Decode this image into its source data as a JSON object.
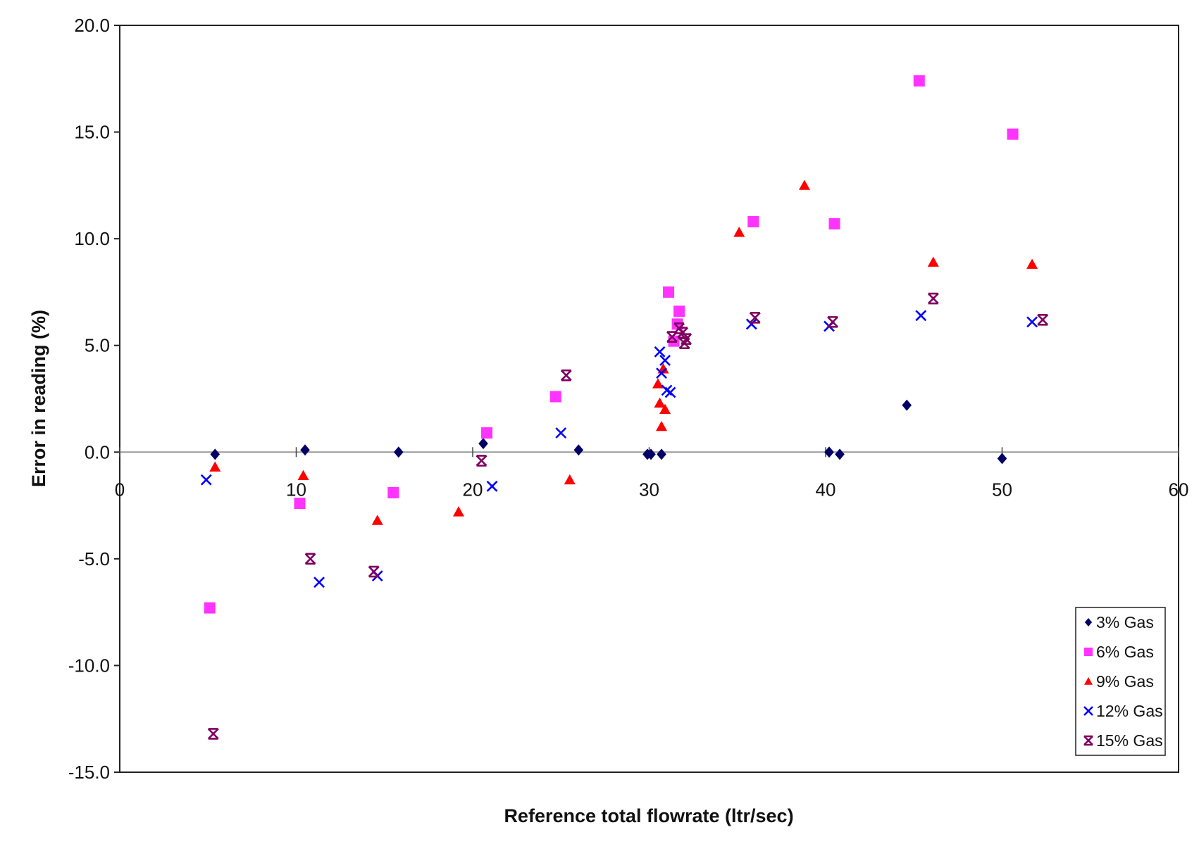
{
  "chart_data": {
    "type": "scatter",
    "xlabel": "Reference total flowrate (ltr/sec)",
    "ylabel": "Error in reading (%)",
    "xlim": [
      0,
      60
    ],
    "ylim": [
      -15,
      20
    ],
    "xticks": [
      0,
      10,
      20,
      30,
      40,
      50,
      60
    ],
    "yticks": [
      -15,
      -10,
      -5,
      0,
      5,
      10,
      15,
      20
    ],
    "xtick_labels": [
      "0",
      "10",
      "20",
      "30",
      "40",
      "50",
      "60"
    ],
    "ytick_labels": [
      "-15.0",
      "-10.0",
      "-5.0",
      "0.0",
      "5.0",
      "10.0",
      "15.0",
      "20.0"
    ],
    "grid": false,
    "zero_line": true,
    "legend_position": "bottom-right",
    "series": [
      {
        "name": "3% Gas",
        "marker": "diamond",
        "color": "#000066",
        "points": [
          [
            5.4,
            -0.1
          ],
          [
            10.5,
            0.1
          ],
          [
            15.8,
            0.0
          ],
          [
            20.6,
            0.4
          ],
          [
            26.0,
            0.1
          ],
          [
            29.9,
            -0.1
          ],
          [
            30.1,
            -0.1
          ],
          [
            30.7,
            -0.1
          ],
          [
            40.2,
            0.0
          ],
          [
            40.8,
            -0.1
          ],
          [
            44.6,
            2.2
          ],
          [
            50.0,
            -0.3
          ]
        ]
      },
      {
        "name": "6% Gas",
        "marker": "square",
        "color": "#ff33ff",
        "points": [
          [
            5.1,
            -7.3
          ],
          [
            10.2,
            -2.4
          ],
          [
            15.5,
            -1.9
          ],
          [
            20.8,
            0.9
          ],
          [
            24.7,
            2.6
          ],
          [
            31.1,
            7.5
          ],
          [
            31.4,
            5.2
          ],
          [
            31.6,
            6.0
          ],
          [
            31.7,
            6.6
          ],
          [
            35.9,
            10.8
          ],
          [
            40.5,
            10.7
          ],
          [
            45.3,
            17.4
          ],
          [
            50.6,
            14.9
          ]
        ]
      },
      {
        "name": "9% Gas",
        "marker": "triangle",
        "color": "#ff0000",
        "points": [
          [
            5.4,
            -0.7
          ],
          [
            10.4,
            -1.1
          ],
          [
            14.6,
            -3.2
          ],
          [
            19.2,
            -2.8
          ],
          [
            25.5,
            -1.3
          ],
          [
            30.5,
            3.2
          ],
          [
            30.6,
            2.3
          ],
          [
            30.7,
            1.2
          ],
          [
            30.8,
            3.9
          ],
          [
            30.9,
            2.0
          ],
          [
            35.1,
            10.3
          ],
          [
            38.8,
            12.5
          ],
          [
            46.1,
            8.9
          ],
          [
            51.7,
            8.8
          ]
        ]
      },
      {
        "name": "12% Gas",
        "marker": "x",
        "color": "#0000ff",
        "points": [
          [
            4.9,
            -1.3
          ],
          [
            11.3,
            -6.1
          ],
          [
            14.6,
            -5.8
          ],
          [
            21.1,
            -1.6
          ],
          [
            25.0,
            0.9
          ],
          [
            30.6,
            4.7
          ],
          [
            30.7,
            3.7
          ],
          [
            30.9,
            4.3
          ],
          [
            31.0,
            2.9
          ],
          [
            31.2,
            2.8
          ],
          [
            35.8,
            6.0
          ],
          [
            40.2,
            5.9
          ],
          [
            45.4,
            6.4
          ],
          [
            51.7,
            6.1
          ]
        ]
      },
      {
        "name": "15% Gas",
        "marker": "asterisk",
        "color": "#800060",
        "points": [
          [
            5.3,
            -13.2
          ],
          [
            10.8,
            -5.0
          ],
          [
            14.4,
            -5.6
          ],
          [
            20.5,
            -0.4
          ],
          [
            25.3,
            3.6
          ],
          [
            31.3,
            5.4
          ],
          [
            31.7,
            5.8
          ],
          [
            31.9,
            5.6
          ],
          [
            32.0,
            5.1
          ],
          [
            32.1,
            5.3
          ],
          [
            36.0,
            6.3
          ],
          [
            40.4,
            6.1
          ],
          [
            46.1,
            7.2
          ],
          [
            52.3,
            6.2
          ]
        ]
      }
    ]
  }
}
